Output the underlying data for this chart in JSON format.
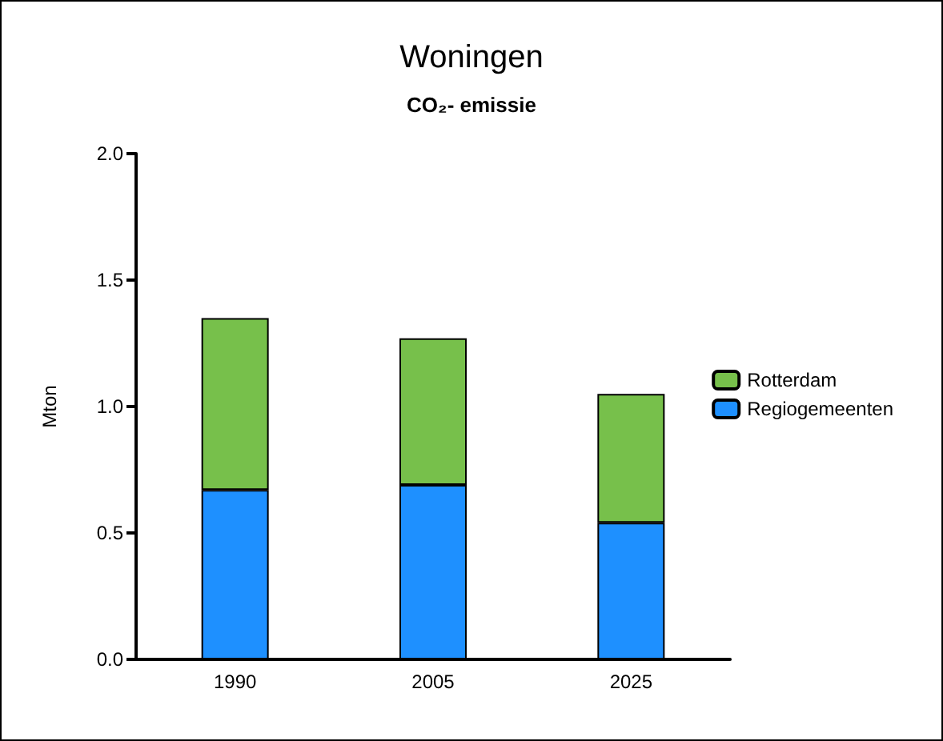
{
  "chart_data": {
    "type": "bar",
    "title": "Woningen",
    "subtitle": "CO₂- emissie",
    "ylabel": "Mton",
    "categories": [
      "1990",
      "2005",
      "2025"
    ],
    "series": [
      {
        "name": "Regiogemeenten",
        "color": "#1e90ff",
        "values": [
          0.67,
          0.69,
          0.54
        ]
      },
      {
        "name": "Rotterdam",
        "color": "#77c04b",
        "values": [
          0.68,
          0.58,
          0.51
        ]
      }
    ],
    "stacked": true,
    "ylim": [
      0,
      2
    ],
    "yticks": [
      {
        "value": 0,
        "label": "0.0"
      },
      {
        "value": 0.5,
        "label": "0.5"
      },
      {
        "value": 1,
        "label": "1.0"
      },
      {
        "value": 1.5,
        "label": "1.5"
      },
      {
        "value": 2,
        "label": "2.0"
      }
    ],
    "grid": false,
    "legend": "right"
  }
}
